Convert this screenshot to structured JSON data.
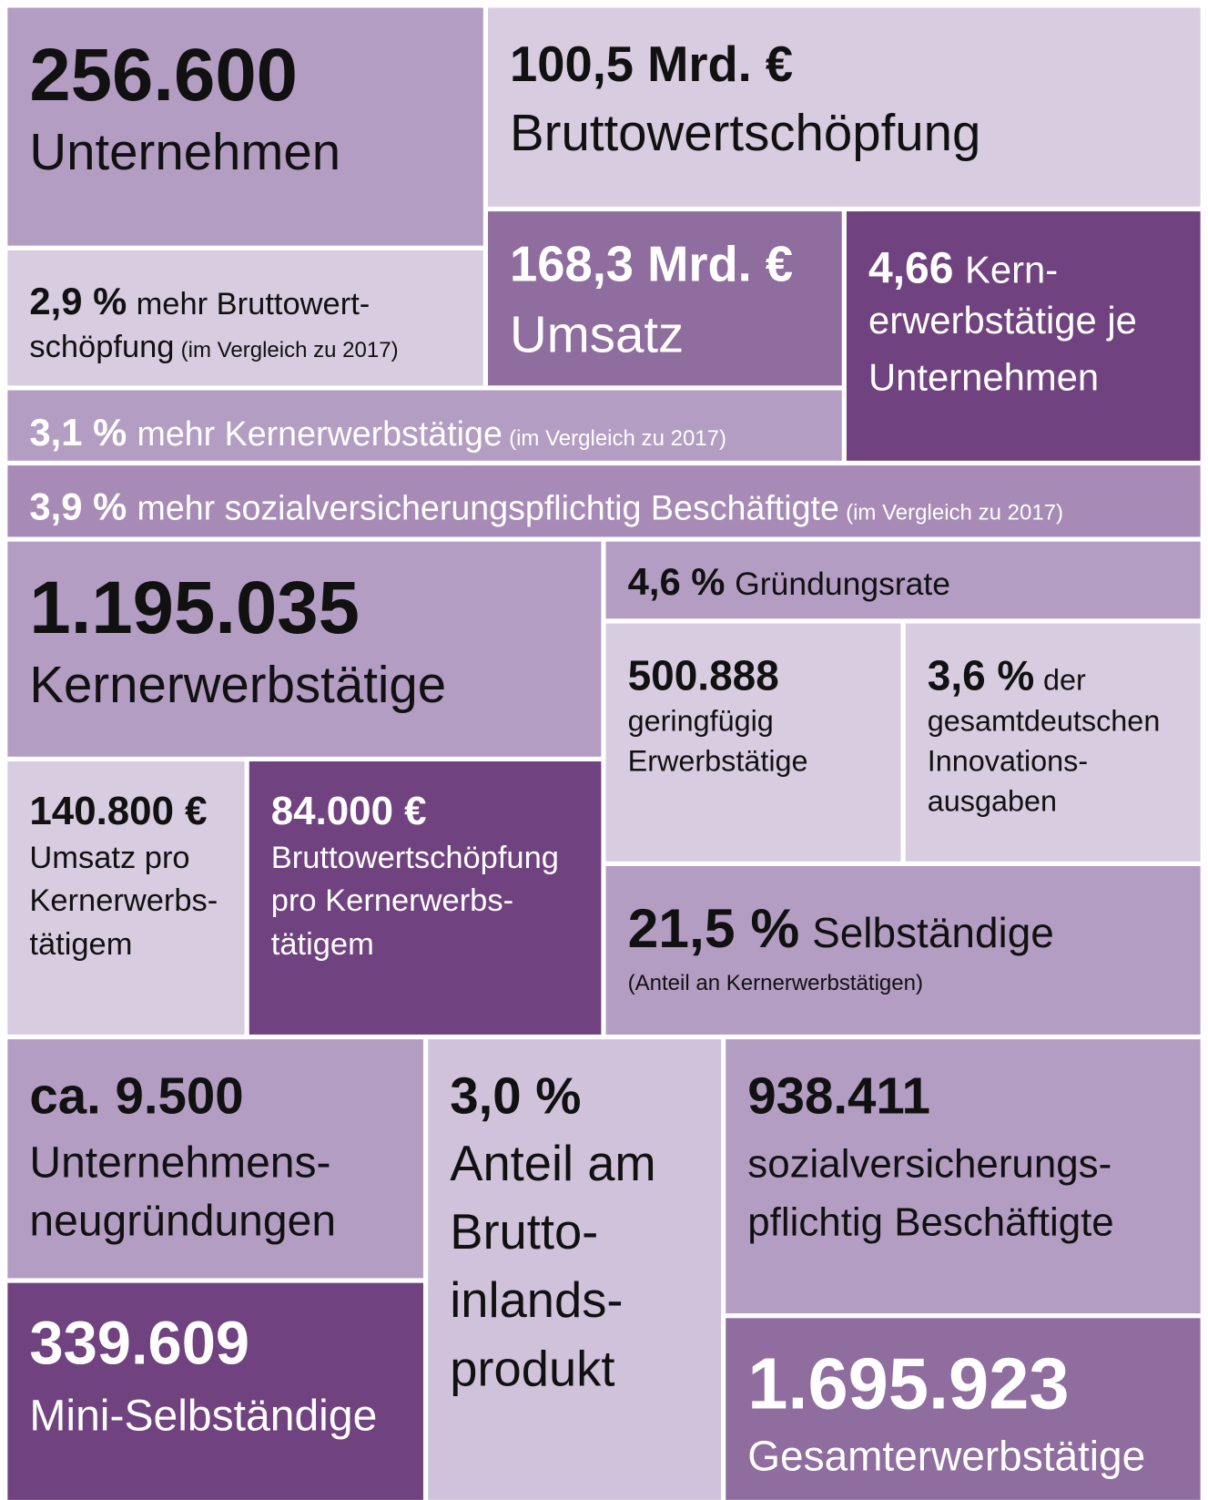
{
  "tiles": [
    {
      "number": "256.600",
      "label": [
        "Unternehmen"
      ]
    },
    {
      "number": "100,5 Mrd. €",
      "label": [
        "Bruttowertschöpfung"
      ]
    },
    {
      "number": "2,9 %",
      "label": [
        "mehr Bruttowert-",
        "schöpfung"
      ],
      "note": "(im Vergleich zu 2017)"
    },
    {
      "number": "168,3 Mrd. €",
      "label": [
        "Umsatz"
      ]
    },
    {
      "number": "4,66",
      "label": [
        "Kern-",
        "erwerbstätige je",
        "Unternehmen"
      ]
    },
    {
      "number": "3,1 %",
      "label": [
        "mehr Kernerwerbstätige"
      ],
      "note": "(im Vergleich zu 2017)"
    },
    {
      "number": "3,9 %",
      "label": [
        "mehr sozialversicherungspflichtig Beschäftigte"
      ],
      "note": "(im Vergleich zu 2017)"
    },
    {
      "number": "1.195.035",
      "label": [
        "Kernerwerbstätige"
      ]
    },
    {
      "number": "4,6 %",
      "label": [
        "Gründungsrate"
      ]
    },
    {
      "number": "500.888",
      "label": [
        "geringfügig",
        "Erwerbstätige"
      ]
    },
    {
      "number": "3,6 %",
      "label": [
        "der",
        "gesamtdeutschen",
        "Innovations-",
        "ausgaben"
      ]
    },
    {
      "number": "140.800 €",
      "label": [
        "Umsatz pro",
        "Kernerwerbs-",
        "tätigem"
      ]
    },
    {
      "number": "84.000 €",
      "label": [
        "Bruttowertschöpfung",
        "pro Kernerwerbs-",
        "tätigem"
      ]
    },
    {
      "number": "21,5 %",
      "label": [
        "Selbständige"
      ],
      "note": "(Anteil an Kernerwerbstätigen)"
    },
    {
      "number": "ca. 9.500",
      "label": [
        "Unternehmens-",
        "neugründungen"
      ]
    },
    {
      "number": "339.609",
      "label": [
        "Mini-Selbständige"
      ]
    },
    {
      "number": "3,0 %",
      "label": [
        "Anteil am",
        "Brutto-",
        "inlands-",
        "produkt"
      ]
    },
    {
      "number": "938.411",
      "label": [
        "sozialversicherungs-",
        "pflichtig Beschäftigte"
      ]
    },
    {
      "number": "1.695.923",
      "label": [
        "Gesamterwerbstätige"
      ]
    }
  ]
}
